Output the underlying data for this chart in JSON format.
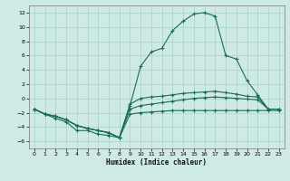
{
  "xlabel": "Humidex (Indice chaleur)",
  "bg_color": "#ceeae4",
  "grid_color": "#aacfc8",
  "line_color": "#1a6b5a",
  "ylim": [
    -7,
    13
  ],
  "xlim": [
    -0.5,
    23.5
  ],
  "yticks": [
    -6,
    -4,
    -2,
    0,
    2,
    4,
    6,
    8,
    10,
    12
  ],
  "x_ticks": [
    0,
    1,
    2,
    3,
    4,
    5,
    6,
    7,
    8,
    9,
    10,
    11,
    12,
    13,
    14,
    15,
    16,
    17,
    18,
    19,
    20,
    21,
    22,
    23
  ],
  "y_main": [
    -1.5,
    -2.2,
    -2.8,
    -3.3,
    -4.5,
    -4.5,
    -5.0,
    -5.2,
    -5.5,
    -1.0,
    4.5,
    6.5,
    7.0,
    9.5,
    10.8,
    11.8,
    12.0,
    11.5,
    6.0,
    5.5,
    2.5,
    0.5,
    -1.5,
    -1.5
  ],
  "y_line2": [
    -1.5,
    -2.2,
    -2.5,
    -3.0,
    -3.8,
    -4.2,
    -4.5,
    -4.8,
    -5.5,
    -0.8,
    0.0,
    0.2,
    0.3,
    0.5,
    0.7,
    0.8,
    0.9,
    1.0,
    0.8,
    0.6,
    0.3,
    0.2,
    -1.5,
    -1.5
  ],
  "y_line3": [
    -1.5,
    -2.2,
    -2.5,
    -3.0,
    -3.8,
    -4.2,
    -4.5,
    -4.8,
    -5.5,
    -1.5,
    -1.0,
    -0.8,
    -0.6,
    -0.4,
    -0.2,
    0.0,
    0.1,
    0.2,
    0.1,
    0.0,
    -0.1,
    -0.2,
    -1.5,
    -1.5
  ],
  "y_line4": [
    -1.5,
    -2.2,
    -2.5,
    -3.0,
    -3.8,
    -4.2,
    -4.5,
    -4.8,
    -5.5,
    -2.2,
    -2.0,
    -1.9,
    -1.8,
    -1.7,
    -1.7,
    -1.7,
    -1.7,
    -1.7,
    -1.7,
    -1.7,
    -1.7,
    -1.7,
    -1.7,
    -1.7
  ]
}
